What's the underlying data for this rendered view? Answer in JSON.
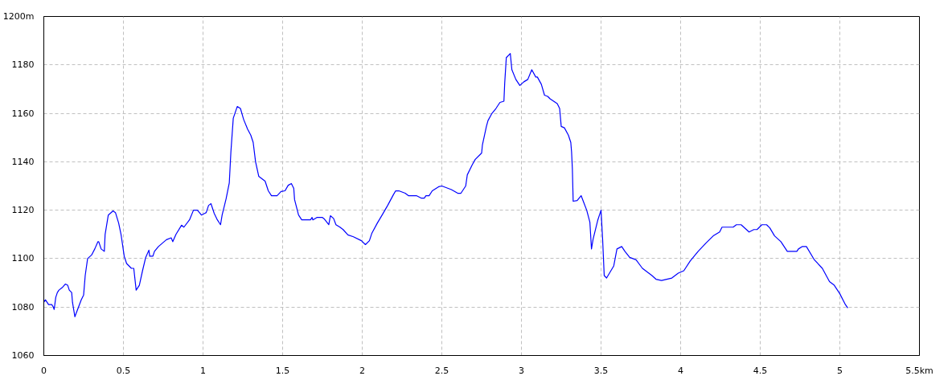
{
  "chart_data": {
    "type": "line",
    "x": [
      0,
      0.01,
      0.03,
      0.05,
      0.06,
      0.065,
      0.075,
      0.085,
      0.095,
      0.115,
      0.135,
      0.15,
      0.16,
      0.175,
      0.18,
      0.195,
      0.235,
      0.25,
      0.26,
      0.275,
      0.3,
      0.32,
      0.34,
      0.345,
      0.36,
      0.38,
      0.385,
      0.405,
      0.435,
      0.45,
      0.47,
      0.485,
      0.505,
      0.52,
      0.55,
      0.565,
      0.58,
      0.6,
      0.62,
      0.64,
      0.66,
      0.665,
      0.685,
      0.695,
      0.72,
      0.77,
      0.8,
      0.81,
      0.83,
      0.865,
      0.88,
      0.915,
      0.94,
      0.965,
      0.99,
      1.02,
      1.035,
      1.05,
      1.07,
      1.09,
      1.11,
      1.12,
      1.145,
      1.165,
      1.175,
      1.19,
      1.215,
      1.235,
      1.255,
      1.28,
      1.3,
      1.315,
      1.33,
      1.35,
      1.39,
      1.41,
      1.43,
      1.465,
      1.49,
      1.515,
      1.535,
      1.555,
      1.57,
      1.575,
      1.6,
      1.62,
      1.675,
      1.685,
      1.69,
      1.715,
      1.75,
      1.76,
      1.79,
      1.8,
      1.82,
      1.835,
      1.86,
      1.88,
      1.91,
      1.945,
      1.995,
      2.02,
      2.045,
      2.06,
      2.095,
      2.125,
      2.16,
      2.195,
      2.21,
      2.23,
      2.27,
      2.29,
      2.34,
      2.37,
      2.39,
      2.4,
      2.42,
      2.44,
      2.48,
      2.5,
      2.56,
      2.6,
      2.62,
      2.65,
      2.66,
      2.69,
      2.71,
      2.75,
      2.755,
      2.78,
      2.79,
      2.815,
      2.84,
      2.865,
      2.89,
      2.895,
      2.905,
      2.93,
      2.94,
      2.965,
      2.99,
      3.015,
      3.04,
      3.065,
      3.09,
      3.1,
      3.125,
      3.145,
      3.165,
      3.18,
      3.225,
      3.24,
      3.25,
      3.27,
      3.295,
      3.31,
      3.315,
      3.32,
      3.325,
      3.35,
      3.375,
      3.41,
      3.43,
      3.44,
      3.45,
      3.48,
      3.5,
      3.51,
      3.52,
      3.535,
      3.58,
      3.6,
      3.63,
      3.65,
      3.68,
      3.72,
      3.76,
      3.82,
      3.845,
      3.88,
      3.945,
      3.985,
      4.02,
      4.06,
      4.11,
      4.16,
      4.205,
      4.245,
      4.26,
      4.33,
      4.35,
      4.38,
      4.43,
      4.46,
      4.48,
      4.51,
      4.54,
      4.56,
      4.59,
      4.63,
      4.67,
      4.73,
      4.74,
      4.765,
      4.79,
      4.84,
      4.89,
      4.935,
      4.965,
      5.0,
      5.035,
      5.05
    ],
    "series": [
      {
        "color": "#0000ff",
        "values": [
          1082,
          1083,
          1081,
          1081,
          1080,
          1079,
          1084,
          1086,
          1087,
          1088,
          1089.5,
          1089,
          1087,
          1086,
          1082,
          1076,
          1083,
          1085,
          1093,
          1100,
          1101.5,
          1104,
          1107,
          1107,
          1104,
          1103,
          1110,
          1118,
          1119.7,
          1119,
          1114.7,
          1110,
          1101,
          1098,
          1096,
          1096,
          1087,
          1089,
          1095,
          1100.5,
          1103.5,
          1101,
          1101,
          1103,
          1105,
          1107.8,
          1108.6,
          1107,
          1110,
          1113.8,
          1113,
          1116,
          1120,
          1120,
          1118,
          1119,
          1122,
          1122.7,
          1118.7,
          1116,
          1114,
          1118,
          1124.7,
          1131.3,
          1144,
          1158,
          1162.8,
          1162,
          1157.5,
          1153.5,
          1151,
          1148,
          1140,
          1134,
          1132,
          1128,
          1126,
          1126,
          1127.7,
          1128,
          1130.3,
          1131,
          1129,
          1124.4,
          1118,
          1116,
          1116,
          1117,
          1116,
          1117,
          1117,
          1116.5,
          1114,
          1117.7,
          1116.6,
          1114,
          1113,
          1112,
          1109.8,
          1109,
          1107.4,
          1105.8,
          1107.4,
          1110.4,
          1114.7,
          1118,
          1122,
          1126.3,
          1128,
          1128,
          1127,
          1126,
          1126,
          1125,
          1125,
          1126,
          1126,
          1128,
          1129.7,
          1130,
          1128.5,
          1127,
          1127,
          1130,
          1134.6,
          1138.6,
          1141,
          1143.6,
          1147,
          1154.6,
          1157,
          1160,
          1162,
          1164.5,
          1165,
          1172.5,
          1183,
          1184.7,
          1178,
          1174,
          1171.5,
          1173,
          1174,
          1178,
          1175,
          1175,
          1172,
          1167.5,
          1167,
          1166,
          1164,
          1162,
          1154.6,
          1154,
          1151,
          1148,
          1144,
          1137,
          1123.7,
          1124,
          1126,
          1120,
          1115,
          1104,
          1108,
          1116,
          1120,
          1108,
          1093,
          1092,
          1097,
          1104,
          1105,
          1103,
          1100.5,
          1099.5,
          1096,
          1093,
          1091.5,
          1091,
          1092,
          1094,
          1095,
          1099,
          1103,
          1106.5,
          1109.4,
          1111,
          1113,
          1113,
          1114,
          1114,
          1111,
          1112,
          1112,
          1114,
          1114,
          1112.7,
          1109.4,
          1107,
          1103,
          1103,
          1104,
          1105,
          1105,
          1099.5,
          1096,
          1090.5,
          1089,
          1085.5,
          1081,
          1079.6
        ]
      }
    ],
    "xlim": [
      0,
      5.5
    ],
    "ylim": [
      1060,
      1200
    ],
    "xticks": [
      0,
      0.5,
      1,
      1.5,
      2,
      2.5,
      3,
      3.5,
      4,
      4.5,
      5,
      {
        "value": 5.5,
        "label": "5.5km"
      }
    ],
    "yticks": [
      1060,
      1080,
      1100,
      1120,
      1140,
      1160,
      1180,
      {
        "value": 1200,
        "label": "1200m"
      }
    ],
    "grid": true,
    "line_style": "solid",
    "marker": "none"
  }
}
